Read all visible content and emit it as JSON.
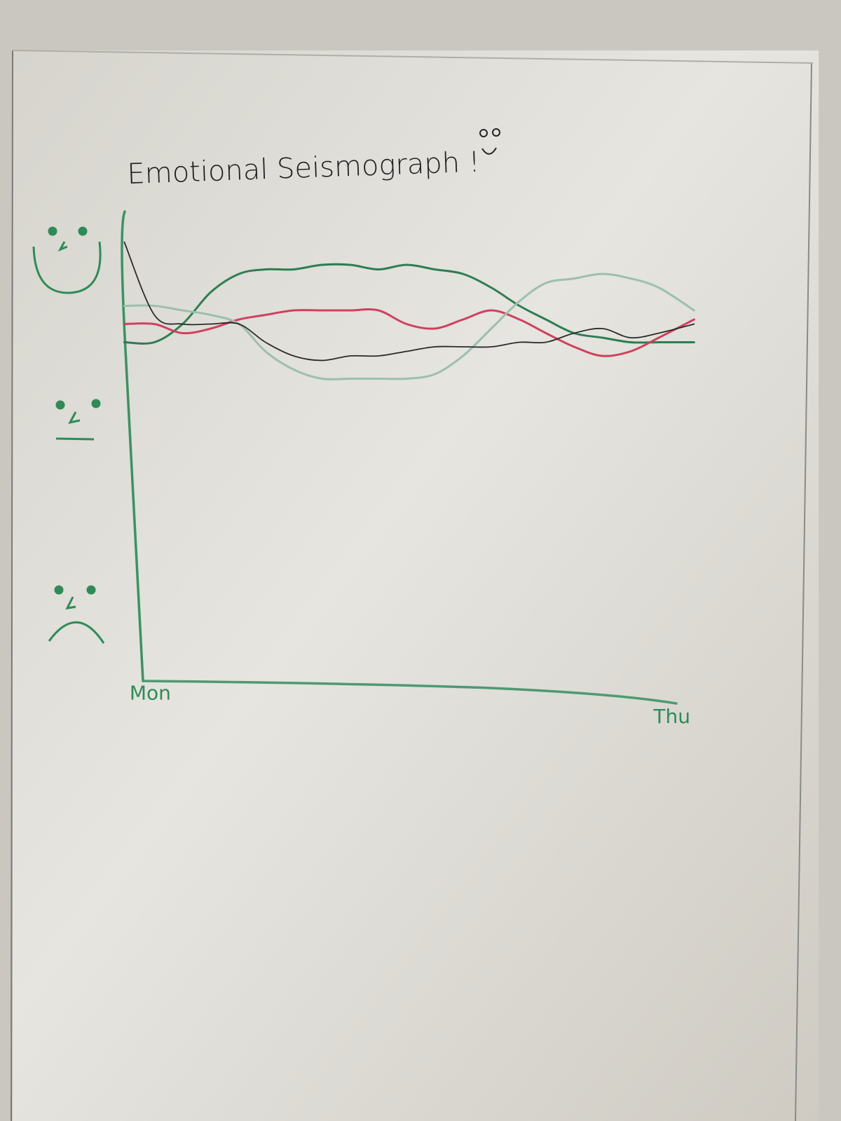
{
  "chart_data": {
    "type": "line",
    "title": "Emotional Seismograph !",
    "x": [
      -0.05,
      0.12,
      0.28,
      0.44,
      0.6,
      0.75,
      0.91,
      1.07,
      1.23,
      1.39,
      1.55,
      1.71,
      1.87,
      2.03,
      2.19,
      2.34,
      2.5,
      2.66,
      2.82,
      2.98,
      3.18
    ],
    "xlim": [
      -0.05,
      3.25
    ],
    "xticks": [
      {
        "value": 0,
        "label": "Mon"
      },
      {
        "value": 3,
        "label": "Thu"
      }
    ],
    "ylim": [
      0,
      10
    ],
    "series": [
      {
        "color": "#2f7d52",
        "values": [
          7.1,
          7.1,
          7.5,
          8.2,
          8.6,
          8.7,
          8.7,
          8.8,
          8.8,
          8.7,
          8.8,
          8.7,
          8.6,
          8.3,
          7.9,
          7.6,
          7.3,
          7.2,
          7.1,
          7.1,
          7.1
        ]
      },
      {
        "color": "#d0405e",
        "values": [
          7.5,
          7.5,
          7.3,
          7.4,
          7.6,
          7.7,
          7.8,
          7.8,
          7.8,
          7.8,
          7.5,
          7.4,
          7.6,
          7.8,
          7.6,
          7.3,
          7.0,
          6.8,
          6.9,
          7.2,
          7.6
        ]
      },
      {
        "color": "#9cbfae",
        "values": [
          7.9,
          7.9,
          7.8,
          7.7,
          7.5,
          6.9,
          6.5,
          6.3,
          6.3,
          6.3,
          6.3,
          6.4,
          6.8,
          7.4,
          8.0,
          8.4,
          8.5,
          8.6,
          8.5,
          8.3,
          7.8
        ]
      },
      {
        "color": "#2a2a2a",
        "values": [
          9.3,
          7.7,
          7.5,
          7.5,
          7.5,
          7.1,
          6.8,
          6.7,
          6.8,
          6.8,
          6.9,
          7.0,
          7.0,
          7.0,
          7.1,
          7.1,
          7.3,
          7.4,
          7.2,
          7.3,
          7.5
        ]
      }
    ]
  }
}
